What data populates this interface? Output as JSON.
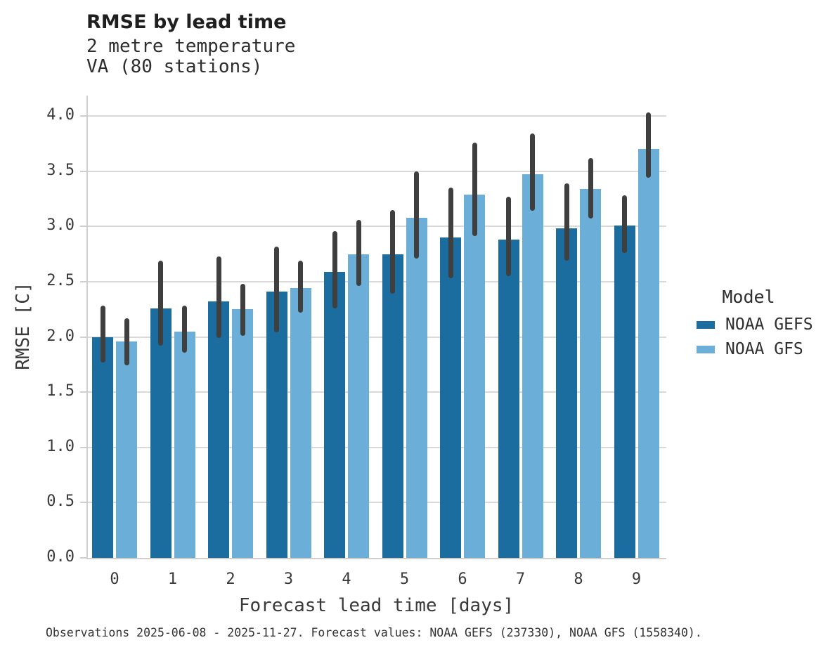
{
  "chart_data": {
    "type": "bar",
    "title": "RMSE by lead time",
    "subtitle_lines": [
      "2 metre temperature",
      "VA (80 stations)"
    ],
    "xlabel": "Forecast lead time [days]",
    "ylabel": "RMSE [C]",
    "categories": [
      "0",
      "1",
      "2",
      "3",
      "4",
      "5",
      "6",
      "7",
      "8",
      "9"
    ],
    "ylim": [
      0.0,
      4.0
    ],
    "ytick_step": 0.5,
    "grid": true,
    "legend": {
      "title": "Model",
      "position": "right"
    },
    "error_bar_color": "#3f3f3f",
    "series": [
      {
        "name": "NOAA GEFS",
        "color": "#1a6d9e",
        "values": [
          2.0,
          2.26,
          2.32,
          2.41,
          2.59,
          2.75,
          2.9,
          2.88,
          2.98,
          3.01
        ],
        "error_low": [
          1.77,
          1.92,
          1.99,
          2.04,
          2.26,
          2.39,
          2.53,
          2.55,
          2.69,
          2.76
        ],
        "error_high": [
          2.28,
          2.69,
          2.73,
          2.82,
          2.96,
          3.15,
          3.35,
          3.27,
          3.39,
          3.28
        ]
      },
      {
        "name": "NOAA GFS",
        "color": "#6bafd8",
        "values": [
          1.96,
          2.05,
          2.25,
          2.44,
          2.75,
          3.08,
          3.29,
          3.47,
          3.34,
          3.7
        ],
        "error_low": [
          1.74,
          1.86,
          2.01,
          2.22,
          2.46,
          2.71,
          2.91,
          3.14,
          3.07,
          3.44
        ],
        "error_high": [
          2.17,
          2.28,
          2.48,
          2.69,
          3.06,
          3.5,
          3.76,
          3.84,
          3.62,
          4.03
        ]
      }
    ],
    "caption": "Observations 2025-06-08 - 2025-11-27. Forecast values: NOAA GEFS (237330), NOAA GFS (1558340)."
  }
}
